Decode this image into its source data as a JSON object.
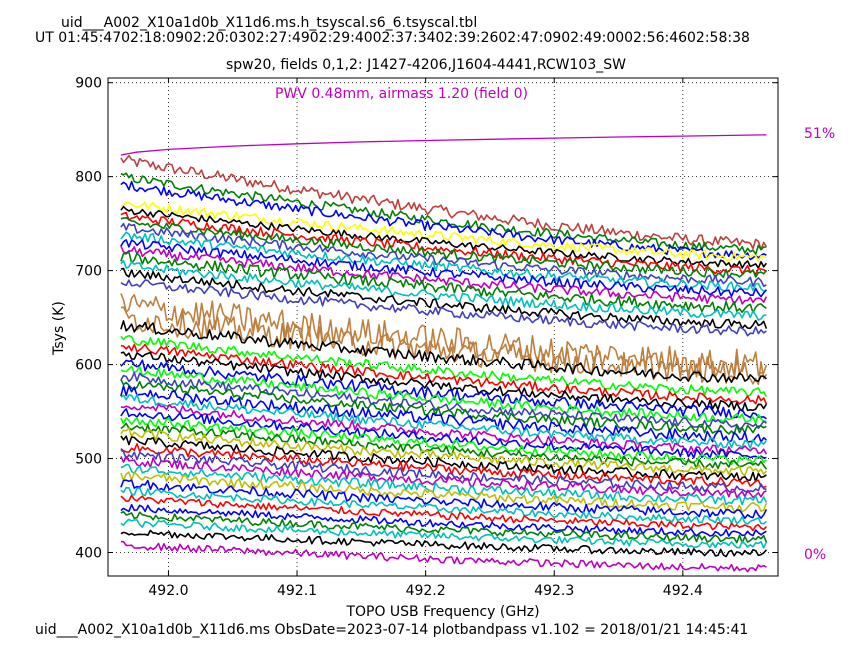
{
  "header": {
    "filename": "uid___A002_X10a1d0b_X11d6.ms.h_tsyscal.s6_6.tsyscal.tbl",
    "ut_times": "UT 01:45:4702:18:0902:20:0302:27:4902:29:4002:37:3402:39:2602:47:0902:49:0002:56:4602:58:38"
  },
  "footer": {
    "text": "uid___A002_X10a1d0b_X11d6.ms  ObsDate=2023-07-14   plotbandpass v1.102 = 2018/01/21 14:45:41"
  },
  "chart_data": {
    "type": "line",
    "title": "spw20,  fields 0,1,2: J1427-4206,J1604-4441,RCW103_SW",
    "xlabel": "TOPO USB Frequency (GHz)",
    "ylabel": "Tsys (K)",
    "xlim": [
      491.953,
      492.474
    ],
    "ylim": [
      375,
      905
    ],
    "xticks": [
      492.0,
      492.1,
      492.2,
      492.3,
      492.4
    ],
    "xtick_labels": [
      "492.0",
      "492.1",
      "492.2",
      "492.3",
      "492.4"
    ],
    "yticks": [
      400,
      500,
      600,
      700,
      800,
      900
    ],
    "ytick_labels": [
      "400",
      "500",
      "600",
      "700",
      "800",
      "900"
    ],
    "grid": true,
    "x_start": 491.963,
    "x_end": 492.465,
    "annotation": {
      "text": "PWV 0.48mm, airmass 1.20 (field 0)",
      "color": "#bf00bf"
    },
    "right_axis": {
      "labels": [
        "51%",
        "0%"
      ],
      "label_values": [
        51,
        0
      ],
      "color": "#bf00bf"
    },
    "transmission_curve": {
      "name": "atmospheric transmission",
      "color": "#bf00bf",
      "x": [
        491.963,
        491.975,
        492.0,
        492.05,
        492.1,
        492.15,
        492.2,
        492.25,
        492.3,
        492.35,
        492.4,
        492.465
      ],
      "y": [
        823,
        826,
        829,
        832.5,
        835,
        837,
        838.5,
        839.8,
        841,
        842.2,
        843.2,
        844.5
      ]
    },
    "colors": [
      "#0000ff",
      "#008000",
      "#ff0000",
      "#00bfbf",
      "#bf00bf",
      "#bfbf00",
      "#000000",
      "#00ff00",
      "#3f3fbf",
      "#bf3f3f",
      "#ffff00",
      "#bf7f3f"
    ],
    "series": [
      {
        "color": "#bf3f3f",
        "start": 818,
        "end": 728,
        "noise": 6
      },
      {
        "color": "#008000",
        "start": 800,
        "end": 722,
        "noise": 5
      },
      {
        "color": "#0000ff",
        "start": 792,
        "end": 716,
        "noise": 5
      },
      {
        "color": "#ffff00",
        "start": 772,
        "end": 714,
        "noise": 5
      },
      {
        "color": "#000000",
        "start": 765,
        "end": 706,
        "noise": 4
      },
      {
        "color": "#ff0000",
        "start": 758,
        "end": 700,
        "noise": 5
      },
      {
        "color": "#008000",
        "start": 752,
        "end": 696,
        "noise": 5
      },
      {
        "color": "#3f3fbf",
        "start": 746,
        "end": 688,
        "noise": 5
      },
      {
        "color": "#00bfbf",
        "start": 738,
        "end": 682,
        "noise": 5
      },
      {
        "color": "#0000ff",
        "start": 730,
        "end": 676,
        "noise": 5
      },
      {
        "color": "#bf00bf",
        "start": 722,
        "end": 668,
        "noise": 5
      },
      {
        "color": "#008000",
        "start": 715,
        "end": 660,
        "noise": 6
      },
      {
        "color": "#00bfbf",
        "start": 706,
        "end": 652,
        "noise": 5
      },
      {
        "color": "#000000",
        "start": 698,
        "end": 642,
        "noise": 5
      },
      {
        "color": "#3f3fbf",
        "start": 688,
        "end": 635,
        "noise": 5
      },
      {
        "color": "#bf7f3f",
        "start": 664,
        "end": 600,
        "noise": 16
      },
      {
        "color": "#bf7f3f",
        "start": 650,
        "end": 592,
        "noise": 14
      },
      {
        "color": "#000000",
        "start": 642,
        "end": 585,
        "noise": 6
      },
      {
        "color": "#00ff00",
        "start": 628,
        "end": 570,
        "noise": 5
      },
      {
        "color": "#ff0000",
        "start": 620,
        "end": 562,
        "noise": 5
      },
      {
        "color": "#000000",
        "start": 612,
        "end": 555,
        "noise": 5
      },
      {
        "color": "#0000ff",
        "start": 602,
        "end": 548,
        "noise": 6
      },
      {
        "color": "#00ff00",
        "start": 595,
        "end": 542,
        "noise": 5
      },
      {
        "color": "#3f3fbf",
        "start": 588,
        "end": 535,
        "noise": 5
      },
      {
        "color": "#008000",
        "start": 580,
        "end": 530,
        "noise": 5
      },
      {
        "color": "#0000ff",
        "start": 572,
        "end": 522,
        "noise": 6
      },
      {
        "color": "#00bfbf",
        "start": 565,
        "end": 515,
        "noise": 5
      },
      {
        "color": "#bf00bf",
        "start": 558,
        "end": 508,
        "noise": 5
      },
      {
        "color": "#0000ff",
        "start": 550,
        "end": 503,
        "noise": 5
      },
      {
        "color": "#00ff00",
        "start": 542,
        "end": 498,
        "noise": 5
      },
      {
        "color": "#008000",
        "start": 535,
        "end": 492,
        "noise": 5
      },
      {
        "color": "#bfbf00",
        "start": 528,
        "end": 486,
        "noise": 5
      },
      {
        "color": "#000000",
        "start": 520,
        "end": 480,
        "noise": 5
      },
      {
        "color": "#ff0000",
        "start": 512,
        "end": 474,
        "noise": 5
      },
      {
        "color": "#3f3fbf",
        "start": 505,
        "end": 468,
        "noise": 5
      },
      {
        "color": "#bf00bf",
        "start": 498,
        "end": 462,
        "noise": 5
      },
      {
        "color": "#00bfbf",
        "start": 490,
        "end": 455,
        "noise": 5
      },
      {
        "color": "#bfbf00",
        "start": 482,
        "end": 448,
        "noise": 5
      },
      {
        "color": "#0000ff",
        "start": 474,
        "end": 441,
        "noise": 5
      },
      {
        "color": "#00bfbf",
        "start": 466,
        "end": 434,
        "noise": 4
      },
      {
        "color": "#ff0000",
        "start": 458,
        "end": 427,
        "noise": 4
      },
      {
        "color": "#0000ff",
        "start": 448,
        "end": 420,
        "noise": 4
      },
      {
        "color": "#008000",
        "start": 440,
        "end": 414,
        "noise": 4
      },
      {
        "color": "#00bfbf",
        "start": 432,
        "end": 408,
        "noise": 4
      },
      {
        "color": "#000000",
        "start": 422,
        "end": 399,
        "noise": 4
      },
      {
        "color": "#bf00bf",
        "start": 408,
        "end": 383,
        "noise": 4
      }
    ]
  }
}
